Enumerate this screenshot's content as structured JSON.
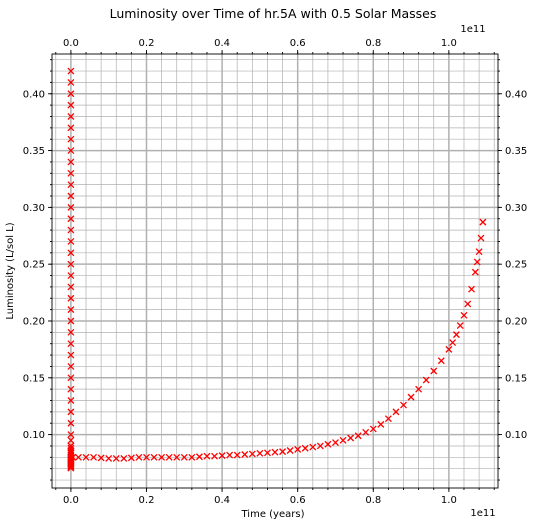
{
  "chart_data": {
    "type": "scatter",
    "title": "Luminosity over Time of hr.5A with 0.5 Solar Masses",
    "xlabel": "Time (years)",
    "ylabel": "Luminosity (L/sol L)",
    "x_offset_label": "1e11",
    "x_top_offset_label": "1e11",
    "xlim": [
      -5000000000.0,
      113000000000.0
    ],
    "ylim": [
      0.053,
      0.435
    ],
    "x_ticks": [
      0,
      20000000000.0,
      40000000000.0,
      60000000000.0,
      80000000000.0,
      100000000000.0
    ],
    "x_tick_labels": [
      "0.0",
      "0.2",
      "0.4",
      "0.6",
      "0.8",
      "1.0"
    ],
    "y_ticks": [
      0.1,
      0.15,
      0.2,
      0.25,
      0.3,
      0.35,
      0.4
    ],
    "y_tick_labels": [
      "0.10",
      "0.15",
      "0.20",
      "0.25",
      "0.30",
      "0.35",
      "0.40"
    ],
    "x_minor_step": 4000000000.0,
    "y_minor_step": 0.01,
    "grid": true,
    "marker": "x",
    "colors": {
      "series": "#ff0000",
      "grid": "#b0b0b0"
    },
    "series": [
      {
        "x": [
          0,
          0,
          0,
          0,
          0,
          0,
          0,
          0,
          0,
          0,
          0,
          0,
          0,
          0,
          0,
          0,
          0,
          0,
          0,
          0,
          0,
          0,
          0,
          0,
          0,
          0,
          0,
          0,
          0,
          0,
          0,
          0,
          0,
          0,
          0,
          0,
          0,
          0,
          0,
          0,
          0,
          0,
          0,
          0,
          0,
          0,
          0,
          0,
          0,
          0,
          0,
          0,
          0,
          0,
          0,
          0,
          0,
          500000000.0,
          2000000000.0,
          4000000000.0,
          6000000000.0,
          8000000000.0,
          10000000000.0,
          12000000000.0,
          14000000000.0,
          16000000000.0,
          18000000000.0,
          20000000000.0,
          22000000000.0,
          24000000000.0,
          26000000000.0,
          28000000000.0,
          30000000000.0,
          32000000000.0,
          34000000000.0,
          36000000000.0,
          38000000000.0,
          40000000000.0,
          42000000000.0,
          44000000000.0,
          46000000000.0,
          48000000000.0,
          50000000000.0,
          52000000000.0,
          54000000000.0,
          56000000000.0,
          58000000000.0,
          60000000000.0,
          62000000000.0,
          64000000000.0,
          66000000000.0,
          68000000000.0,
          70000000000.0,
          72000000000.0,
          74000000000.0,
          76000000000.0,
          78000000000.0,
          80000000000.0,
          82000000000.0,
          84000000000.0,
          86000000000.0,
          88000000000.0,
          90000000000.0,
          92000000000.0,
          94000000000.0,
          96000000000.0,
          98000000000.0,
          100000000000.0,
          101000000000.0,
          102000000000.0,
          103000000000.0,
          104000000000.0,
          105000000000.0,
          106000000000.0,
          107000000000.0,
          107500000000.0,
          108000000000.0,
          108500000000.0,
          109000000000.0
        ],
        "y": [
          0.42,
          0.41,
          0.4,
          0.39,
          0.38,
          0.37,
          0.36,
          0.35,
          0.34,
          0.33,
          0.32,
          0.31,
          0.3,
          0.29,
          0.28,
          0.27,
          0.26,
          0.25,
          0.24,
          0.23,
          0.22,
          0.21,
          0.2,
          0.19,
          0.18,
          0.17,
          0.16,
          0.15,
          0.14,
          0.13,
          0.12,
          0.11,
          0.1,
          0.095,
          0.09,
          0.085,
          0.08,
          0.078,
          0.076,
          0.074,
          0.072,
          0.071,
          0.075,
          0.0725,
          0.0705,
          0.08,
          0.082,
          0.084,
          0.086,
          0.088,
          0.09,
          0.079,
          0.0785,
          0.0775,
          0.0765,
          0.0745,
          0.0735,
          0.08,
          0.08,
          0.08,
          0.08,
          0.0795,
          0.079,
          0.079,
          0.079,
          0.0795,
          0.08,
          0.08,
          0.08,
          0.08,
          0.08,
          0.08,
          0.08,
          0.08,
          0.0805,
          0.081,
          0.081,
          0.0815,
          0.082,
          0.082,
          0.0825,
          0.083,
          0.0835,
          0.084,
          0.0845,
          0.085,
          0.086,
          0.087,
          0.088,
          0.089,
          0.09,
          0.0915,
          0.093,
          0.095,
          0.097,
          0.099,
          0.102,
          0.105,
          0.109,
          0.114,
          0.12,
          0.126,
          0.133,
          0.14,
          0.148,
          0.156,
          0.165,
          0.175,
          0.181,
          0.188,
          0.196,
          0.205,
          0.215,
          0.228,
          0.243,
          0.252,
          0.261,
          0.273,
          0.287
        ]
      }
    ]
  }
}
